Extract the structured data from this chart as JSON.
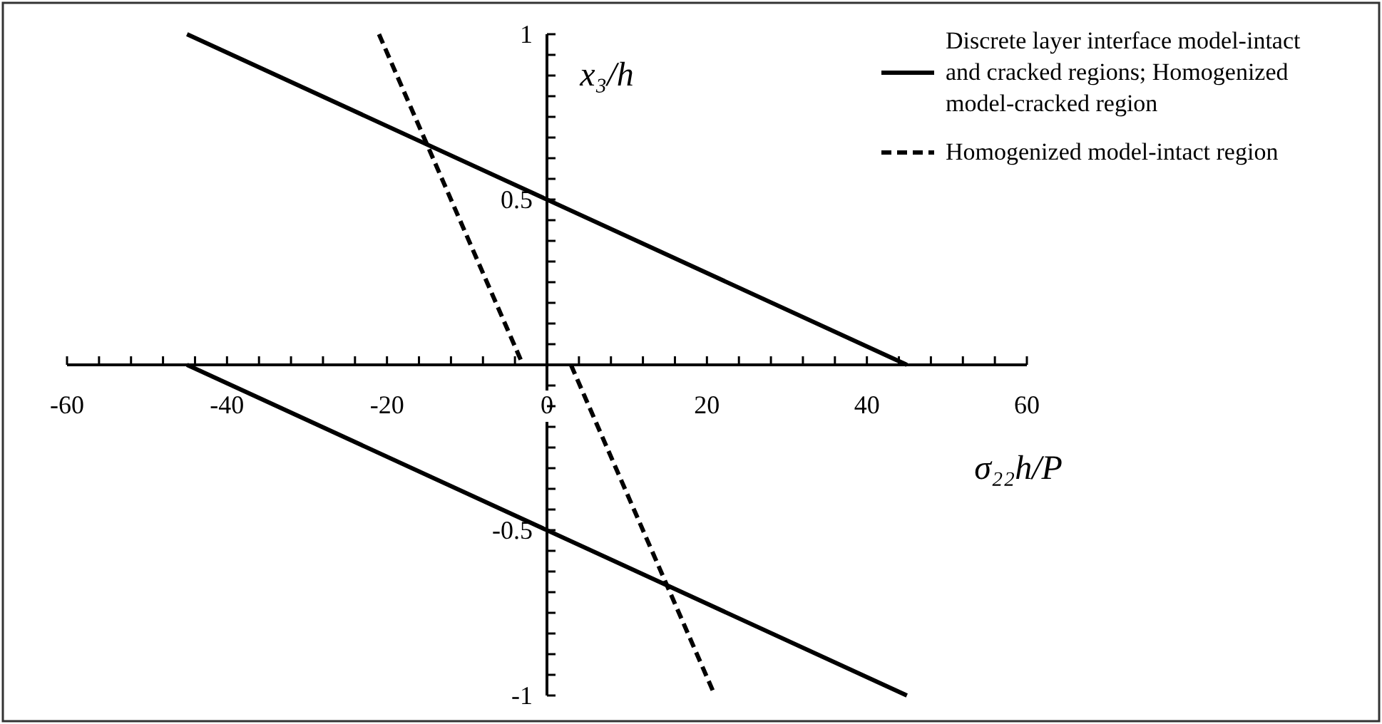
{
  "chart_data": {
    "type": "line",
    "xlabel": "σ₂₂h/P",
    "ylabel": "x₃/h",
    "xlim": [
      -60,
      60
    ],
    "ylim": [
      -1,
      1
    ],
    "xticks": [
      -60,
      {
        "value": -56,
        "label": null
      },
      {
        "value": -52,
        "label": null
      },
      {
        "value": -48,
        "label": null
      },
      {
        "value": -44,
        "label": null
      },
      -40,
      {
        "value": -36,
        "label": null
      },
      {
        "value": -32,
        "label": null
      },
      {
        "value": -28,
        "label": null
      },
      {
        "value": -24,
        "label": null
      },
      -20,
      {
        "value": -16,
        "label": null
      },
      {
        "value": -12,
        "label": null
      },
      {
        "value": -8,
        "label": null
      },
      {
        "value": -4,
        "label": null
      },
      0,
      {
        "value": 4,
        "label": null
      },
      {
        "value": 8,
        "label": null
      },
      {
        "value": 12,
        "label": null
      },
      {
        "value": 16,
        "label": null
      },
      20,
      {
        "value": 24,
        "label": null
      },
      {
        "value": 28,
        "label": null
      },
      {
        "value": 32,
        "label": null
      },
      {
        "value": 36,
        "label": null
      },
      40,
      {
        "value": 44,
        "label": null
      },
      {
        "value": 48,
        "label": null
      },
      {
        "value": 52,
        "label": null
      },
      {
        "value": 56,
        "label": null
      },
      60
    ],
    "yticks": [
      -1,
      {
        "value": -0.9375,
        "label": null
      },
      {
        "value": -0.875,
        "label": null
      },
      {
        "value": -0.8125,
        "label": null
      },
      {
        "value": -0.75,
        "label": null
      },
      {
        "value": -0.6875,
        "label": null
      },
      {
        "value": -0.625,
        "label": null
      },
      {
        "value": -0.5625,
        "label": null
      },
      -0.5,
      {
        "value": -0.4375,
        "label": null
      },
      {
        "value": -0.375,
        "label": null
      },
      {
        "value": -0.3125,
        "label": null
      },
      {
        "value": -0.25,
        "label": null
      },
      {
        "value": -0.1875,
        "label": null
      },
      {
        "value": -0.125,
        "label": null
      },
      {
        "value": -0.0625,
        "label": null
      },
      {
        "value": 0,
        "label": null
      },
      {
        "value": 0.0625,
        "label": null
      },
      {
        "value": 0.125,
        "label": null
      },
      {
        "value": 0.1875,
        "label": null
      },
      {
        "value": 0.25,
        "label": null
      },
      {
        "value": 0.3125,
        "label": null
      },
      {
        "value": 0.375,
        "label": null
      },
      {
        "value": 0.4375,
        "label": null
      },
      0.5,
      {
        "value": 0.5625,
        "label": null
      },
      {
        "value": 0.625,
        "label": null
      },
      {
        "value": 0.6875,
        "label": null
      },
      {
        "value": 0.75,
        "label": null
      },
      {
        "value": 0.8125,
        "label": null
      },
      {
        "value": 0.875,
        "label": null
      },
      {
        "value": 0.9375,
        "label": null
      },
      1
    ],
    "grid": false,
    "legend": "top right",
    "marker": "none",
    "series": [
      {
        "name": "Discrete layer interface model-intact and cracked regions; Homogenized model-cracked region",
        "color": "#000000",
        "line_style": "solid",
        "x": [
          -45,
          45
        ],
        "values": [
          1,
          0
        ]
      },
      {
        "color": "#000000",
        "line_style": "solid",
        "x": [
          -45,
          45
        ],
        "values": [
          0,
          -1
        ]
      },
      {
        "name": "Homogenized model-intact region",
        "color": "#000000",
        "line_style": "dashed",
        "x": [
          -21,
          -3
        ],
        "values": [
          1,
          0
        ]
      },
      {
        "color": "#000000",
        "line_style": "dashed",
        "x": [
          3,
          21
        ],
        "values": [
          0,
          -1
        ]
      }
    ]
  }
}
